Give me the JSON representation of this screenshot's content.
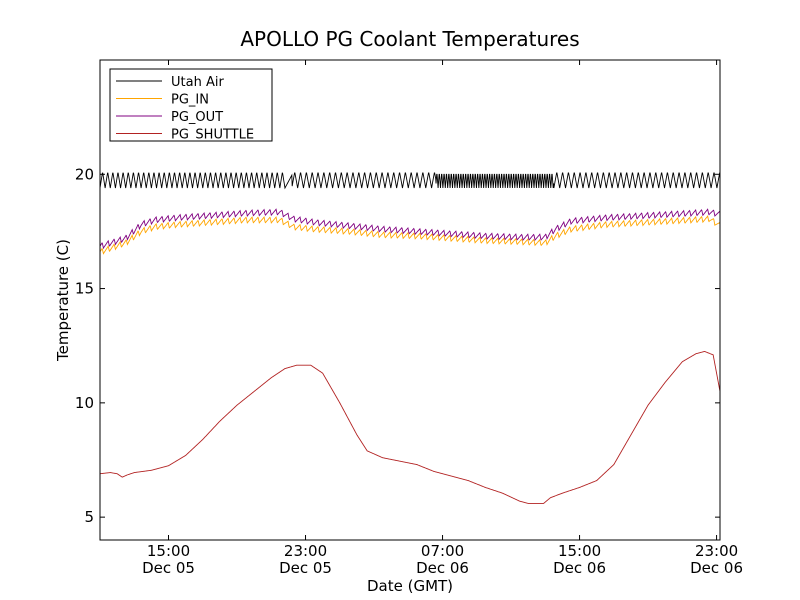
{
  "chart_data": {
    "type": "line",
    "title": "APOLLO PG Coolant Temperatures",
    "xlabel": "Date (GMT)",
    "ylabel": "Temperature (C)",
    "xlim": [
      11.0,
      47.2
    ],
    "ylim": [
      4,
      25
    ],
    "x_units": "hours since 00:00 Dec 05 (GMT)",
    "grid": false,
    "legend_position": "top-left",
    "xticks": [
      {
        "x": 15,
        "time": "15:00",
        "date": "Dec 05"
      },
      {
        "x": 23,
        "time": "23:00",
        "date": "Dec 05"
      },
      {
        "x": 31,
        "time": "07:00",
        "date": "Dec 06"
      },
      {
        "x": 39,
        "time": "15:00",
        "date": "Dec 06"
      },
      {
        "x": 47,
        "time": "23:00",
        "date": "Dec 06"
      }
    ],
    "yticks": [
      {
        "y": 5,
        "label": "5"
      },
      {
        "y": 10,
        "label": "10"
      },
      {
        "y": 15,
        "label": "15"
      },
      {
        "y": 20,
        "label": "20"
      }
    ],
    "series": [
      {
        "name": "Utah Air",
        "color": "#000000",
        "style": "oscillation",
        "baseline": 19.75,
        "amplitude": 0.35,
        "segments": [
          {
            "x0": 11.0,
            "x1": 21.8,
            "period": 0.3
          },
          {
            "x0": 21.8,
            "x1": 22.2,
            "period": 1.0
          },
          {
            "x0": 22.2,
            "x1": 30.6,
            "period": 0.34
          },
          {
            "x0": 30.6,
            "x1": 37.5,
            "period": 0.14
          },
          {
            "x0": 37.5,
            "x1": 47.2,
            "period": 0.34
          }
        ]
      },
      {
        "name": "PG_IN",
        "color": "#ffa500",
        "sawtooth_amplitude": 0.25,
        "sawtooth_period": 0.35,
        "points": [
          [
            11.0,
            16.6
          ],
          [
            12.5,
            17.0
          ],
          [
            13.4,
            17.5
          ],
          [
            14.2,
            17.7
          ],
          [
            15.5,
            17.8
          ],
          [
            17.5,
            17.9
          ],
          [
            19.5,
            18.0
          ],
          [
            21.5,
            18.0
          ],
          [
            22.3,
            17.7
          ],
          [
            23.5,
            17.6
          ],
          [
            25.5,
            17.5
          ],
          [
            27.5,
            17.35
          ],
          [
            29.5,
            17.3
          ],
          [
            31.5,
            17.2
          ],
          [
            33.5,
            17.1
          ],
          [
            35.5,
            17.05
          ],
          [
            37.0,
            17.0
          ],
          [
            37.6,
            17.3
          ],
          [
            38.5,
            17.6
          ],
          [
            40.5,
            17.8
          ],
          [
            43.0,
            17.9
          ],
          [
            45.5,
            18.0
          ],
          [
            46.6,
            18.05
          ],
          [
            47.2,
            17.75
          ]
        ]
      },
      {
        "name": "PG_OUT",
        "color": "#800080",
        "sawtooth_amplitude": 0.25,
        "sawtooth_period": 0.35,
        "points": [
          [
            11.0,
            16.85
          ],
          [
            12.5,
            17.2
          ],
          [
            13.4,
            17.8
          ],
          [
            14.2,
            18.0
          ],
          [
            15.5,
            18.1
          ],
          [
            17.5,
            18.2
          ],
          [
            19.5,
            18.3
          ],
          [
            21.5,
            18.35
          ],
          [
            22.3,
            18.05
          ],
          [
            23.5,
            17.9
          ],
          [
            25.5,
            17.75
          ],
          [
            27.5,
            17.6
          ],
          [
            29.5,
            17.5
          ],
          [
            31.5,
            17.4
          ],
          [
            33.5,
            17.3
          ],
          [
            35.5,
            17.25
          ],
          [
            37.0,
            17.25
          ],
          [
            37.6,
            17.6
          ],
          [
            38.5,
            17.95
          ],
          [
            40.5,
            18.1
          ],
          [
            43.0,
            18.2
          ],
          [
            45.5,
            18.3
          ],
          [
            46.6,
            18.35
          ],
          [
            47.2,
            18.25
          ]
        ]
      },
      {
        "name": "PG_SHUTTLE",
        "color": "#b22222",
        "points": [
          [
            11.0,
            6.9
          ],
          [
            11.6,
            6.95
          ],
          [
            12.0,
            6.9
          ],
          [
            12.3,
            6.75
          ],
          [
            12.6,
            6.85
          ],
          [
            13.0,
            6.95
          ],
          [
            14.0,
            7.05
          ],
          [
            15.0,
            7.25
          ],
          [
            16.0,
            7.7
          ],
          [
            17.0,
            8.4
          ],
          [
            18.0,
            9.2
          ],
          [
            19.0,
            9.9
          ],
          [
            20.0,
            10.5
          ],
          [
            21.0,
            11.1
          ],
          [
            21.8,
            11.5
          ],
          [
            22.5,
            11.65
          ],
          [
            23.3,
            11.65
          ],
          [
            24.0,
            11.3
          ],
          [
            25.0,
            10.0
          ],
          [
            26.0,
            8.6
          ],
          [
            26.6,
            7.9
          ],
          [
            27.5,
            7.6
          ],
          [
            28.5,
            7.45
          ],
          [
            29.5,
            7.3
          ],
          [
            30.5,
            7.0
          ],
          [
            31.5,
            6.8
          ],
          [
            32.5,
            6.6
          ],
          [
            33.5,
            6.3
          ],
          [
            34.5,
            6.05
          ],
          [
            35.5,
            5.7
          ],
          [
            36.0,
            5.6
          ],
          [
            36.9,
            5.6
          ],
          [
            37.3,
            5.85
          ],
          [
            38.0,
            6.05
          ],
          [
            39.0,
            6.3
          ],
          [
            40.0,
            6.6
          ],
          [
            41.0,
            7.3
          ],
          [
            42.0,
            8.6
          ],
          [
            43.0,
            9.9
          ],
          [
            44.0,
            10.9
          ],
          [
            45.0,
            11.8
          ],
          [
            45.8,
            12.15
          ],
          [
            46.3,
            12.25
          ],
          [
            46.8,
            12.1
          ],
          [
            47.2,
            10.5
          ]
        ]
      }
    ]
  }
}
